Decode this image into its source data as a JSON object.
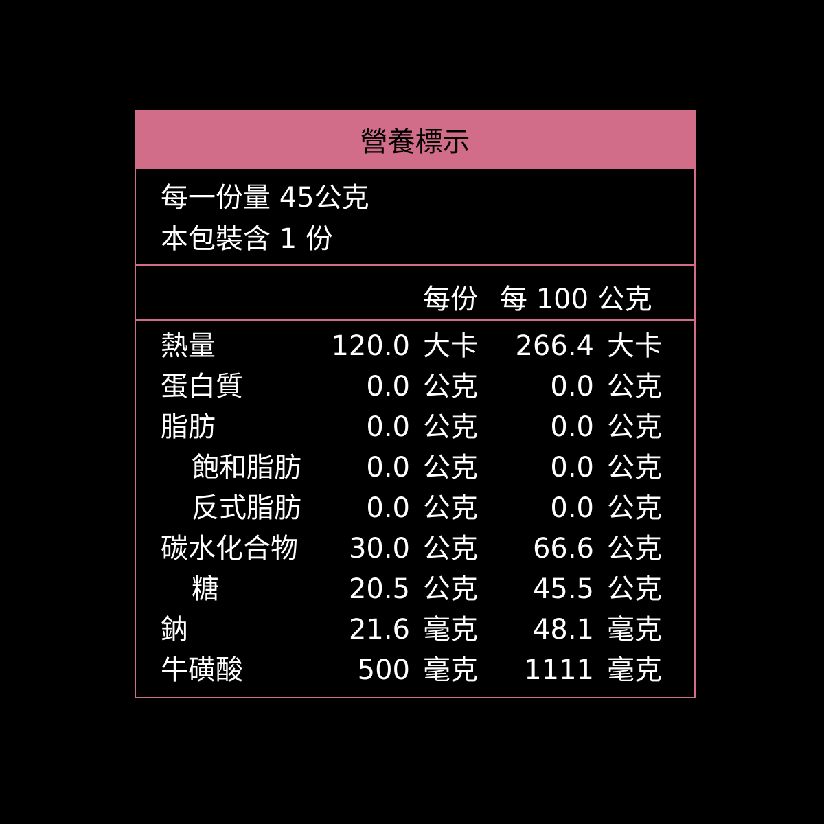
{
  "title": "營養標示",
  "serving_size": "每一份量 45公克",
  "servings_per_package": "本包裝含  1 份",
  "columns": {
    "per_serving": "每份",
    "per_100g": "每 100 公克"
  },
  "colors": {
    "accent": "#d16d88",
    "background": "#000000"
  },
  "rows": [
    {
      "name": "熱量",
      "indent": false,
      "v1": "120.0",
      "u1": "大卡",
      "v2": "266.4",
      "u2": "大卡"
    },
    {
      "name": "蛋白質",
      "indent": false,
      "v1": "0.0",
      "u1": "公克",
      "v2": "0.0",
      "u2": "公克"
    },
    {
      "name": "脂肪",
      "indent": false,
      "v1": "0.0",
      "u1": "公克",
      "v2": "0.0",
      "u2": "公克"
    },
    {
      "name": "飽和脂肪",
      "indent": true,
      "v1": "0.0",
      "u1": "公克",
      "v2": "0.0",
      "u2": "公克"
    },
    {
      "name": "反式脂肪",
      "indent": true,
      "v1": "0.0",
      "u1": "公克",
      "v2": "0.0",
      "u2": "公克"
    },
    {
      "name": "碳水化合物",
      "indent": false,
      "v1": "30.0",
      "u1": "公克",
      "v2": "66.6",
      "u2": "公克"
    },
    {
      "name": "糖",
      "indent": true,
      "v1": "20.5",
      "u1": "公克",
      "v2": "45.5",
      "u2": "公克"
    },
    {
      "name": "鈉",
      "indent": false,
      "v1": "21.6",
      "u1": "毫克",
      "v2": "48.1",
      "u2": "毫克"
    },
    {
      "name": "牛磺酸",
      "indent": false,
      "v1": "500",
      "u1": "毫克",
      "v2": "1111",
      "u2": "毫克"
    }
  ]
}
